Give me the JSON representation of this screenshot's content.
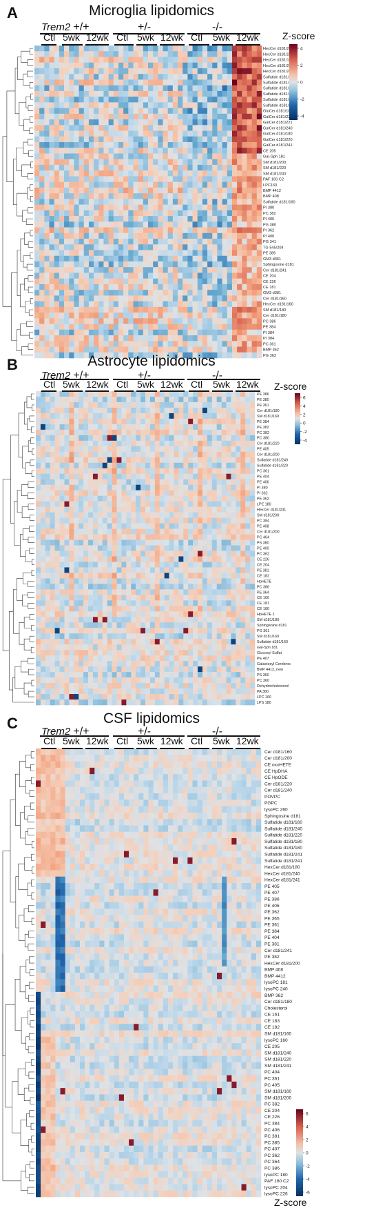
{
  "figure": {
    "panels": [
      {
        "letter": "A",
        "title": "Microglia lipidomics",
        "genotype_label": "Trem2",
        "groups": [
          "+/+",
          "+/-",
          "-/-"
        ],
        "timepoints": [
          "Ctl",
          "5wk",
          "12wk"
        ],
        "legend_title": "Z-score",
        "legend_ticks": [
          "4",
          "2",
          "0",
          "-2",
          "-4"
        ],
        "rows": [
          "HexCer d181/200",
          "HexCer d181/241",
          "HexCer d181/180",
          "HexCer d181/220",
          "HexCer d181/240",
          "Sulfatide d181/180",
          "Sulfatide d181/160",
          "Sulfatide d181/240",
          "Sulfatide d181/220",
          "Sulfatide d181/241",
          "Sulfatide d181/241",
          "GluCer d181/180",
          "GalCer d181/220",
          "GalCer d181/221",
          "GalCer d181/240",
          "GalCer d181/180",
          "GalCer d181/220",
          "GalCer d181/241",
          "CE 205",
          "Gal-Gph 181",
          "SM d181/200",
          "SM d181/220",
          "SM d181/240",
          "PAF 160 C2",
          "LPC160",
          "BMP 4412",
          "BMP 408",
          "Sulfatide d181/160",
          "PI 380",
          "PC 382",
          "PI 406",
          "PG 380",
          "PI 362",
          "PI 400",
          "PG 341",
          "TG 545/204",
          "PE 386",
          "GM3 d361",
          "Sphingosine d181",
          "Cer d181/241",
          "CE 204",
          "CE 226",
          "CE 181",
          "GM3 d381",
          "Cer d181/160",
          "HexCer d181/160",
          "SM d181/180",
          "Cer d181/180",
          "PC 386",
          "PE 384",
          "PI 384",
          "PI 384",
          "PC 361",
          "BMP 362",
          "PG 362"
        ]
      },
      {
        "letter": "B",
        "title": "Astrocyte lipidomics",
        "genotype_label": "Trem2",
        "groups": [
          "+/+",
          "+/-",
          "-/-"
        ],
        "timepoints": [
          "Ctl",
          "5wk",
          "12wk"
        ],
        "legend_title": "Z-score",
        "legend_ticks": [
          "6",
          "4",
          "2",
          "0",
          "-2",
          "-4"
        ],
        "rows": [
          "PE 386",
          "PE 380",
          "PE 361",
          "Cer d181/180",
          "SM d181/160",
          "PE 384",
          "PE 382",
          "PC 382",
          "PC 380",
          "Cer d181/220",
          "PE 405",
          "Cer d181/200",
          "Sulfatide d181/240",
          "Sulfatide d181/220",
          "PC 361",
          "PE 404",
          "PE 406",
          "PI 380",
          "PI 362",
          "PE 362",
          "LPE 180",
          "HexCer d181/241",
          "SM d181/200",
          "PC 384",
          "PE 408",
          "Cer d181/200",
          "PC 404",
          "PS 380",
          "PE 400",
          "PC 362",
          "CE 226",
          "CE 204",
          "PE 381",
          "CE 182",
          "HpHETE",
          "PC 386",
          "PE 364",
          "CE 160",
          "CE 181",
          "CE 180",
          "HpHETE.1",
          "SM d181/180",
          "Sphinganine d181",
          "PG 361",
          "SM d181/160",
          "Sulfatide d181/160",
          "Gal-Sph 181",
          "Glucosyl Sulfat",
          "PE 407",
          "Galactosyl Cerebros",
          "BMP 4412_new",
          "PS 360",
          "PC 360",
          "Dehydrocholesterol",
          "PA 380",
          "LPC 160",
          "LPS 180"
        ]
      },
      {
        "letter": "C",
        "title": "CSF lipidomics",
        "genotype_label": "Trem2",
        "groups": [
          "+/+",
          "+/-",
          "-/-"
        ],
        "timepoints": [
          "Ctl",
          "5wk",
          "12wk"
        ],
        "legend_title": "Z-score",
        "legend_ticks": [
          "6",
          "4",
          "2",
          "0",
          "-2",
          "-4",
          "-6"
        ],
        "rows": [
          "Cer d181/160",
          "Cer d181/200",
          "CE oxoHETE",
          "CE HpDHA",
          "CE HpODE",
          "Cer d181/220",
          "Cer d181/240",
          "POVPC",
          "PGPC",
          "lysoPC 260",
          "Sphingosine d181",
          "Sulfatide d181/160",
          "Sulfatide d181/240",
          "Sulfatide d181/220",
          "Sulfatide d181/180",
          "Sulfatide d181/180",
          "Sulfatide d181/241",
          "Sulfatide d181/241",
          "HexCer d181/180",
          "HexCer d181/240",
          "HexCer d181/241",
          "PE 405",
          "PE 407",
          "PE 386",
          "PE 406",
          "PE 362",
          "PE 365",
          "PE 361",
          "PE 384",
          "PE 404",
          "PE 381",
          "Cer d181/241",
          "PE 382",
          "HexCer d181/200",
          "BMP 408",
          "BMP 4412",
          "lysoPC 181",
          "lysoPC 240",
          "BMP 362",
          "Cer d181/180",
          "Cholesterol",
          "CE 161",
          "CE 183",
          "CE 182",
          "SM d181/160",
          "lysoPC 160",
          "CE 205",
          "SM d181/240",
          "SM d181/220",
          "SM d181/241",
          "PC 404",
          "PC 361",
          "PC 405",
          "SM d181/160",
          "SM d181/200",
          "PC 382",
          "CE 204",
          "CE 226",
          "PC 384",
          "PC 406",
          "PC 381",
          "PC 385",
          "PC 407",
          "PC 362",
          "PC 364",
          "PC 386",
          "lysoPC 180",
          "PAF 160 C2",
          "lysoPC 204",
          "lysoPC 226"
        ]
      }
    ]
  }
}
